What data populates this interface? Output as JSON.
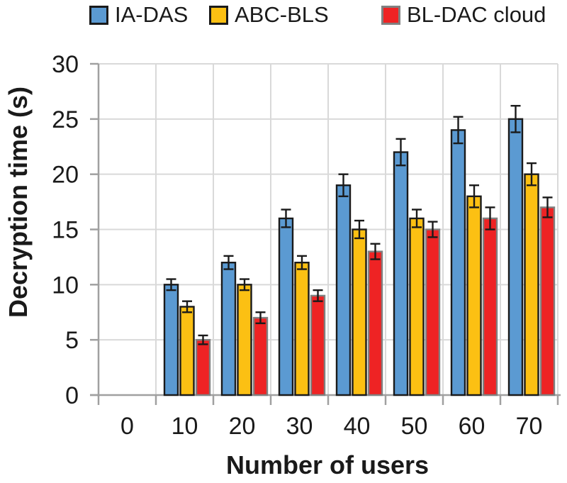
{
  "chart_data": {
    "type": "bar",
    "title": "",
    "xlabel": "Number of users",
    "ylabel": "Decryption time (s)",
    "categories": [
      "0",
      "10",
      "20",
      "30",
      "40",
      "50",
      "60",
      "70"
    ],
    "series": [
      {
        "name": "IA-DAS",
        "color": "#5b9ad2",
        "border_color": "#1a1a1a",
        "values": [
          null,
          10,
          12,
          16,
          19,
          22,
          24,
          25
        ],
        "errors": [
          null,
          0.5,
          0.6,
          0.8,
          1.0,
          1.2,
          1.2,
          1.2
        ]
      },
      {
        "name": "ABC-BLS",
        "color": "#fcc013",
        "border_color": "#1a1a1a",
        "values": [
          null,
          8,
          10,
          12,
          15,
          16,
          18,
          20
        ],
        "errors": [
          null,
          0.5,
          0.5,
          0.6,
          0.8,
          0.8,
          1.0,
          1.0
        ]
      },
      {
        "name": "BL-DAC cloud",
        "color": "#ee2324",
        "border_color": "#808080",
        "values": [
          null,
          5,
          7,
          9,
          13,
          15,
          16,
          17
        ],
        "errors": [
          null,
          0.4,
          0.5,
          0.5,
          0.7,
          0.7,
          1.0,
          0.9
        ]
      }
    ],
    "ylim": [
      0,
      30
    ],
    "ytick_step": 5,
    "yticks": [
      0,
      5,
      10,
      15,
      20,
      25,
      30
    ],
    "grid": true,
    "error_bars": true,
    "legend_position": "top",
    "colors": {
      "gridline": "#d9d9d9",
      "axis_line": "#a0a0a0",
      "error_bar": "#1a1a1a",
      "text": "#1a1a1a"
    }
  }
}
